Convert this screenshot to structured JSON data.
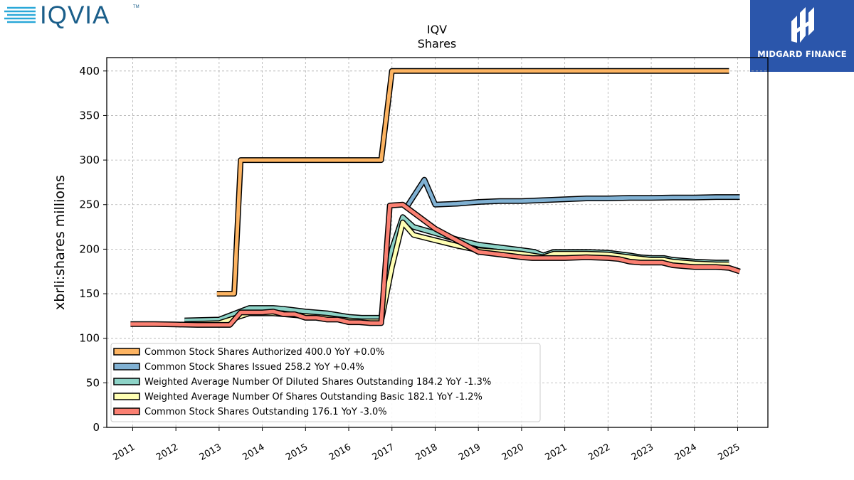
{
  "brand": {
    "left_logo_text": "IQVIA",
    "left_logo_tm": "TM",
    "right_logo_text": "MIDGARD FINANCE",
    "left_logo_color": "#1a5e8a",
    "left_logo_accent": "#2aa8d8",
    "right_logo_bg": "#2b56ab"
  },
  "chart_data": {
    "type": "line",
    "title": "IQV",
    "subtitle": "Shares",
    "xlabel": "",
    "ylabel": "xbrli:shares millions",
    "xlim": [
      2010.4,
      2025.7
    ],
    "ylim": [
      0,
      415
    ],
    "yticks": [
      0,
      50,
      100,
      150,
      200,
      250,
      300,
      350,
      400
    ],
    "xticks": [
      "2011",
      "2012",
      "2013",
      "2014",
      "2015",
      "2016",
      "2017",
      "2018",
      "2019",
      "2020",
      "2021",
      "2022",
      "2023",
      "2024",
      "2025"
    ],
    "grid": true,
    "legend_placement": "lower-left",
    "series": [
      {
        "name": "Common Stock Shares Authorized  400.0 YoY +0.0%",
        "color": "#fdb462",
        "points": [
          [
            2012.95,
            150
          ],
          [
            2013.35,
            150
          ],
          [
            2013.5,
            300
          ],
          [
            2016.75,
            300
          ],
          [
            2017.0,
            400
          ],
          [
            2024.8,
            400
          ]
        ]
      },
      {
        "name": "Common Stock Shares Issued  258.2 YoY +0.4%",
        "color": "#80b1d3",
        "points": [
          [
            2017.35,
            248
          ],
          [
            2017.75,
            278
          ],
          [
            2018.0,
            250
          ],
          [
            2018.5,
            251
          ],
          [
            2019.0,
            253
          ],
          [
            2019.5,
            254
          ],
          [
            2020.0,
            254
          ],
          [
            2020.5,
            255
          ],
          [
            2021.0,
            256
          ],
          [
            2021.5,
            257
          ],
          [
            2022.0,
            257
          ],
          [
            2022.5,
            257.5
          ],
          [
            2023.0,
            257.5
          ],
          [
            2023.5,
            258
          ],
          [
            2024.0,
            258
          ],
          [
            2024.5,
            258.5
          ],
          [
            2025.05,
            258.5
          ]
        ]
      },
      {
        "name": "Weighted Average Number Of Diluted Shares Outstanding  184.2 YoY -1.3%",
        "color": "#8dd3c7",
        "points": [
          [
            2012.2,
            120
          ],
          [
            2013.0,
            121
          ],
          [
            2013.7,
            134
          ],
          [
            2014.0,
            134
          ],
          [
            2014.25,
            134
          ],
          [
            2014.5,
            133
          ],
          [
            2015.0,
            130
          ],
          [
            2015.5,
            128
          ],
          [
            2016.0,
            124
          ],
          [
            2016.3,
            123
          ],
          [
            2016.75,
            123
          ],
          [
            2017.0,
            200
          ],
          [
            2017.25,
            236
          ],
          [
            2017.5,
            225
          ],
          [
            2018.0,
            218
          ],
          [
            2018.5,
            211
          ],
          [
            2019.0,
            205
          ],
          [
            2019.5,
            202
          ],
          [
            2020.0,
            199
          ],
          [
            2020.3,
            197
          ],
          [
            2020.5,
            193
          ],
          [
            2020.75,
            197
          ],
          [
            2021.0,
            197
          ],
          [
            2021.5,
            197
          ],
          [
            2022.0,
            196
          ],
          [
            2022.5,
            193
          ],
          [
            2022.75,
            191
          ],
          [
            2023.0,
            190
          ],
          [
            2023.3,
            190
          ],
          [
            2023.5,
            188
          ],
          [
            2024.0,
            186
          ],
          [
            2024.5,
            185
          ],
          [
            2024.8,
            185
          ]
        ]
      },
      {
        "name": "Weighted Average Number Of Shares Outstanding Basic  182.1 YoY -1.2%",
        "color": "#ffffb3",
        "points": [
          [
            2012.2,
            116
          ],
          [
            2013.0,
            117
          ],
          [
            2013.7,
            128
          ],
          [
            2014.0,
            128
          ],
          [
            2014.25,
            128
          ],
          [
            2014.5,
            127
          ],
          [
            2015.0,
            125
          ],
          [
            2015.5,
            123
          ],
          [
            2016.0,
            120
          ],
          [
            2016.3,
            119
          ],
          [
            2016.75,
            119
          ],
          [
            2017.0,
            180
          ],
          [
            2017.25,
            230
          ],
          [
            2017.5,
            216
          ],
          [
            2018.0,
            210
          ],
          [
            2018.5,
            204
          ],
          [
            2019.0,
            199
          ],
          [
            2019.5,
            197
          ],
          [
            2020.0,
            195
          ],
          [
            2020.5,
            191
          ],
          [
            2020.75,
            195
          ],
          [
            2021.0,
            195
          ],
          [
            2021.5,
            195
          ],
          [
            2022.0,
            194
          ],
          [
            2022.5,
            191
          ],
          [
            2023.0,
            188
          ],
          [
            2023.3,
            188
          ],
          [
            2023.5,
            186
          ],
          [
            2024.0,
            184
          ],
          [
            2024.5,
            183
          ],
          [
            2024.8,
            183
          ]
        ]
      },
      {
        "name": "Common Stock Shares Outstanding  176.1 YoY -3.0%",
        "color": "#fb8072",
        "points": [
          [
            2010.95,
            116
          ],
          [
            2011.5,
            116
          ],
          [
            2012.0,
            115.5
          ],
          [
            2012.5,
            115
          ],
          [
            2013.0,
            115
          ],
          [
            2013.25,
            115
          ],
          [
            2013.5,
            129
          ],
          [
            2013.75,
            129
          ],
          [
            2014.0,
            129
          ],
          [
            2014.25,
            130
          ],
          [
            2014.5,
            127
          ],
          [
            2014.75,
            127
          ],
          [
            2015.0,
            123
          ],
          [
            2015.25,
            123
          ],
          [
            2015.5,
            121
          ],
          [
            2015.75,
            121
          ],
          [
            2016.0,
            118
          ],
          [
            2016.25,
            118
          ],
          [
            2016.5,
            117
          ],
          [
            2016.75,
            117
          ],
          [
            2016.95,
            249
          ],
          [
            2017.25,
            250
          ],
          [
            2018.0,
            223
          ],
          [
            2019.0,
            197
          ],
          [
            2019.5,
            194
          ],
          [
            2020.0,
            191
          ],
          [
            2020.25,
            190
          ],
          [
            2020.5,
            190
          ],
          [
            2021.0,
            190
          ],
          [
            2021.5,
            191
          ],
          [
            2022.0,
            190
          ],
          [
            2022.25,
            189
          ],
          [
            2022.5,
            186
          ],
          [
            2022.75,
            185
          ],
          [
            2023.0,
            185
          ],
          [
            2023.25,
            185
          ],
          [
            2023.5,
            182
          ],
          [
            2024.0,
            180
          ],
          [
            2024.5,
            180
          ],
          [
            2024.8,
            179
          ],
          [
            2025.05,
            175
          ]
        ]
      }
    ]
  }
}
